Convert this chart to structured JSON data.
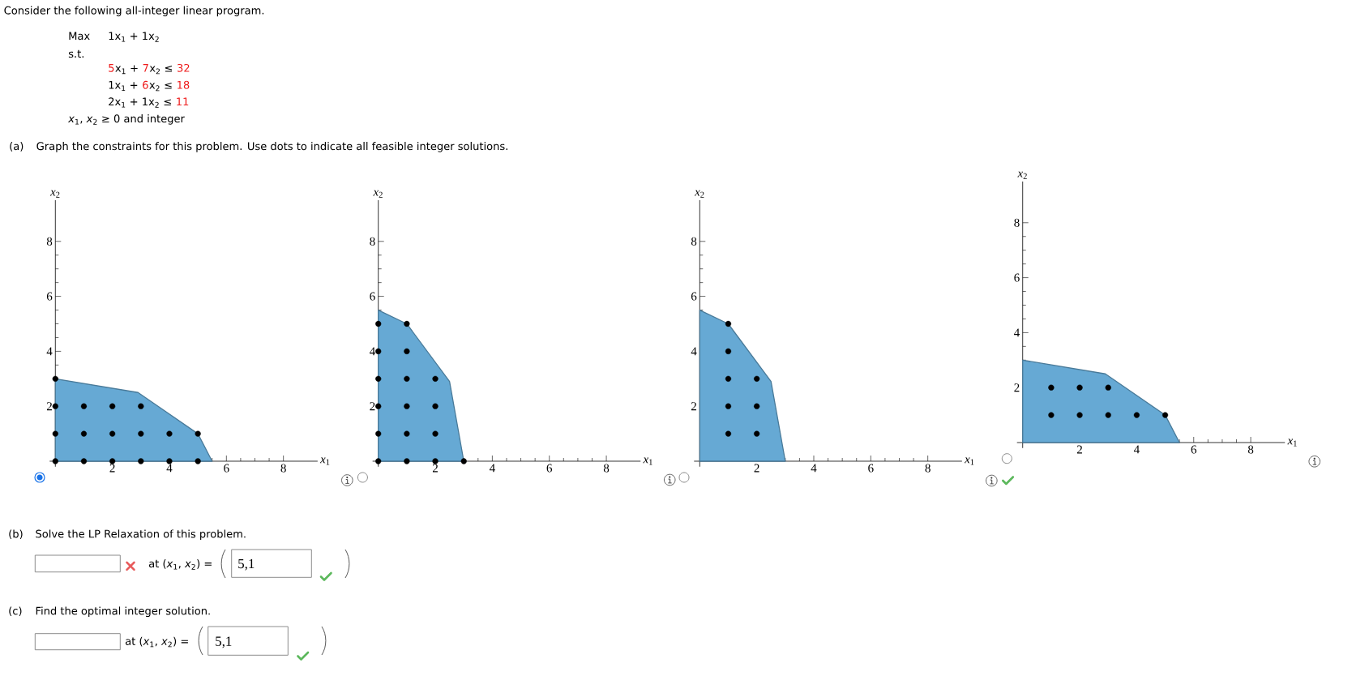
{
  "chart_data": [
    {
      "type": "other",
      "title": "Consider the following all-integer linear program.",
      "annotations": [
        "Max",
        "1x$_{1}$ + 1x$_{2}$",
        "s.t.",
        "5",
        "x$_{1}$ +",
        "7",
        "x$_{2}$ ≤",
        "32",
        "1x$_{1}$ +",
        "6",
        "x$_{2}$ ≤",
        "18",
        "2x$_{1}$ + 1x$_{2}$ ≤",
        "11",
        "*x*$_{1}$, *x*$_{2}$ ≥ 0 and integer",
        "(a)",
        "Graph the constraints for this problem. Use dots to indicate all feasible integer solutions."
      ]
    },
    {
      "type": "scatter",
      "xlabel": "*x*$_{1}$",
      "ylabel": "*x*$_{2}$",
      "xlim": [
        -0.2,
        9.2
      ],
      "ylim": [
        -0.2,
        9.5
      ],
      "xticks": [
        2,
        4,
        6,
        8
      ],
      "yticks": [
        2,
        4,
        6,
        8
      ],
      "series": [
        {
          "type": "area",
          "color": "#66a9d4",
          "x": [
            0,
            2.9,
            5,
            5.5
          ],
          "values": [
            3,
            2.5,
            1,
            0
          ]
        },
        {
          "type": "scatter",
          "marker": "circle",
          "color": "#000000",
          "x": [
            0,
            0,
            0,
            0,
            1,
            1,
            1,
            2,
            2,
            2,
            3,
            3,
            3,
            4,
            4,
            5,
            5
          ],
          "values": [
            0,
            1,
            2,
            3,
            0,
            1,
            2,
            0,
            1,
            2,
            0,
            1,
            2,
            0,
            1,
            0,
            1
          ]
        }
      ]
    },
    {
      "type": "scatter",
      "xlabel": "*x*$_{1}$",
      "ylabel": "*x*$_{2}$",
      "xlim": [
        -0.2,
        9.2
      ],
      "ylim": [
        -0.2,
        9.5
      ],
      "xticks": [
        2,
        4,
        6,
        8
      ],
      "yticks": [
        2,
        4,
        6,
        8
      ],
      "series": [
        {
          "type": "area",
          "color": "#66a9d4",
          "x": [
            0,
            1,
            2.5,
            3
          ],
          "values": [
            5.5,
            5,
            2.9,
            0
          ]
        },
        {
          "type": "scatter",
          "marker": "circle",
          "color": "#000000",
          "x": [
            0,
            0,
            0,
            0,
            0,
            0,
            1,
            1,
            1,
            1,
            1,
            1,
            2,
            2,
            2,
            2,
            3
          ],
          "values": [
            0,
            1,
            2,
            3,
            4,
            5,
            0,
            1,
            2,
            3,
            4,
            5,
            0,
            1,
            2,
            3,
            0
          ]
        }
      ]
    },
    {
      "type": "scatter",
      "xlabel": "*x*$_{1}$",
      "ylabel": "*x*$_{2}$",
      "xlim": [
        -0.2,
        9.2
      ],
      "ylim": [
        -0.2,
        9.5
      ],
      "xticks": [
        2,
        4,
        6,
        8
      ],
      "yticks": [
        2,
        4,
        6,
        8
      ],
      "series": [
        {
          "type": "area",
          "color": "#66a9d4",
          "x": [
            0,
            1,
            2.5,
            3
          ],
          "values": [
            5.5,
            5,
            2.9,
            0
          ]
        },
        {
          "type": "scatter",
          "marker": "circle",
          "color": "#000000",
          "x": [
            1,
            1,
            1,
            1,
            1,
            2,
            2,
            2
          ],
          "values": [
            1,
            2,
            3,
            4,
            5,
            1,
            2,
            3
          ]
        }
      ]
    },
    {
      "type": "scatter",
      "xlabel": "*x*$_{1}$",
      "ylabel": "*x*$_{2}$",
      "xlim": [
        -0.2,
        9.2
      ],
      "ylim": [
        -0.2,
        9.5
      ],
      "xticks": [
        2,
        4,
        6,
        8
      ],
      "yticks": [
        2,
        4,
        6,
        8
      ],
      "series": [
        {
          "type": "area",
          "color": "#66a9d4",
          "x": [
            0,
            2.9,
            5,
            5.5
          ],
          "values": [
            3,
            2.5,
            1,
            0
          ]
        },
        {
          "type": "scatter",
          "marker": "circle",
          "color": "#000000",
          "x": [
            1,
            1,
            2,
            2,
            3,
            3,
            4,
            5
          ],
          "values": [
            1,
            2,
            1,
            2,
            1,
            2,
            1,
            1
          ]
        }
      ]
    },
    {
      "type": "other",
      "annotations": [
        "(b)",
        "Solve the LP Relaxation of this problem.",
        "at (*x*$_{1}$, *x*$_{2}$) =",
        "5,1",
        "(c)",
        "Find the optimal integer solution.",
        "at (*x*$_{1}$, *x*$_{2}$) =",
        "5,1"
      ]
    }
  ]
}
